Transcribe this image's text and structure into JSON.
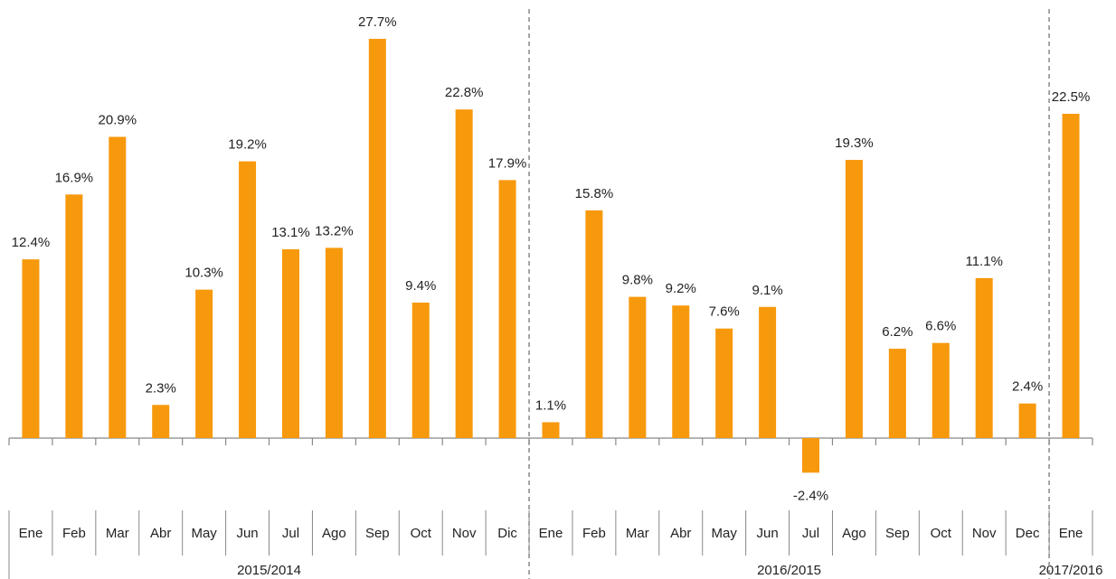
{
  "chart_data": {
    "type": "bar",
    "color": "#f7990c",
    "groups": [
      {
        "name": "2015/2014",
        "categories": [
          "Ene",
          "Feb",
          "Mar",
          "Abr",
          "May",
          "Jun",
          "Jul",
          "Ago",
          "Sep",
          "Oct",
          "Nov",
          "Dic"
        ]
      },
      {
        "name": "2016/2015",
        "categories": [
          "Ene",
          "Feb",
          "Mar",
          "Abr",
          "May",
          "Jun",
          "Jul",
          "Ago",
          "Sep",
          "Oct",
          "Nov",
          "Dec"
        ]
      },
      {
        "name": "2017/2016",
        "categories": [
          "Ene"
        ]
      }
    ],
    "values": [
      12.4,
      16.9,
      20.9,
      2.3,
      10.3,
      19.2,
      13.1,
      13.2,
      27.7,
      9.4,
      22.8,
      17.9,
      1.1,
      15.8,
      9.8,
      9.2,
      7.6,
      9.1,
      -2.4,
      19.3,
      6.2,
      6.6,
      11.1,
      2.4,
      22.5
    ],
    "value_labels": [
      "12.4%",
      "16.9%",
      "20.9%",
      "2.3%",
      "10.3%",
      "19.2%",
      "13.1%",
      "13.2%",
      "27.7%",
      "9.4%",
      "22.8%",
      "17.9%",
      "1.1%",
      "15.8%",
      "9.8%",
      "9.2%",
      "7.6%",
      "9.1%",
      "-2.4%",
      "19.3%",
      "6.2%",
      "6.6%",
      "11.1%",
      "2.4%",
      "22.5%"
    ]
  }
}
